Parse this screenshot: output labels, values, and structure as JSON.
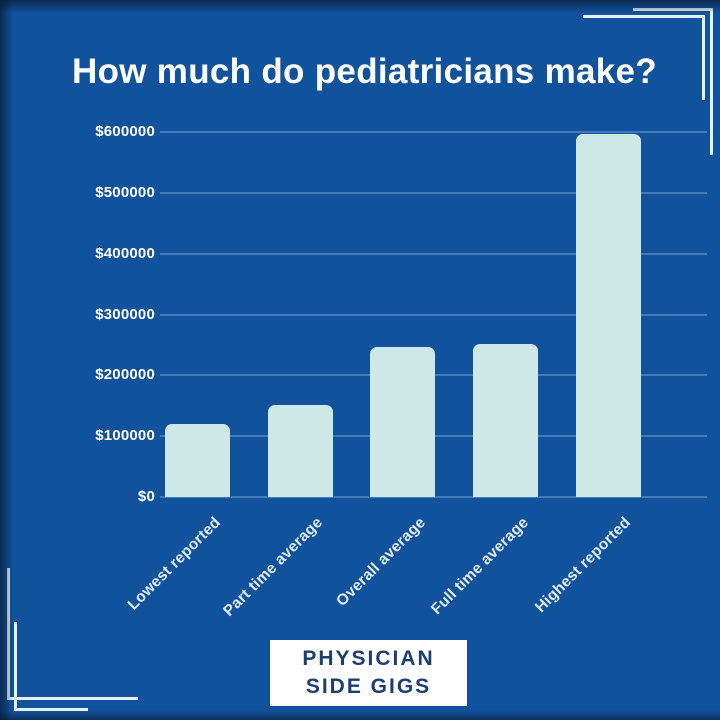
{
  "title": "How much do pediatricians make?",
  "brand": {
    "line1": "PHYSICIAN",
    "line2": "SIDE GIGS"
  },
  "colors": {
    "background": "#11529d",
    "bar": "#cde8e7",
    "title_text": "#ffffff",
    "axis_text": "#ffffff",
    "brand_text": "#1c3e73",
    "bracket": "#e8f1f8",
    "gridline": "rgba(170,205,235,0.33)"
  },
  "chart_data": {
    "type": "bar",
    "title": "How much do pediatricians make?",
    "categories": [
      "Lowest reported",
      "Part time average",
      "Overall average",
      "Full time average",
      "Highest reported"
    ],
    "values": [
      120000,
      151000,
      246000,
      252000,
      596000
    ],
    "xlabel": "",
    "ylabel": "",
    "ylim": [
      0,
      600000
    ],
    "ytick_step": 100000,
    "ytick_labels": [
      "$0",
      "$100000",
      "$200000",
      "$300000",
      "$400000",
      "$500000",
      "$600000"
    ],
    "grid": true,
    "legend": false,
    "bar_corner": "rounded-top",
    "x_label_rotation": 45
  }
}
